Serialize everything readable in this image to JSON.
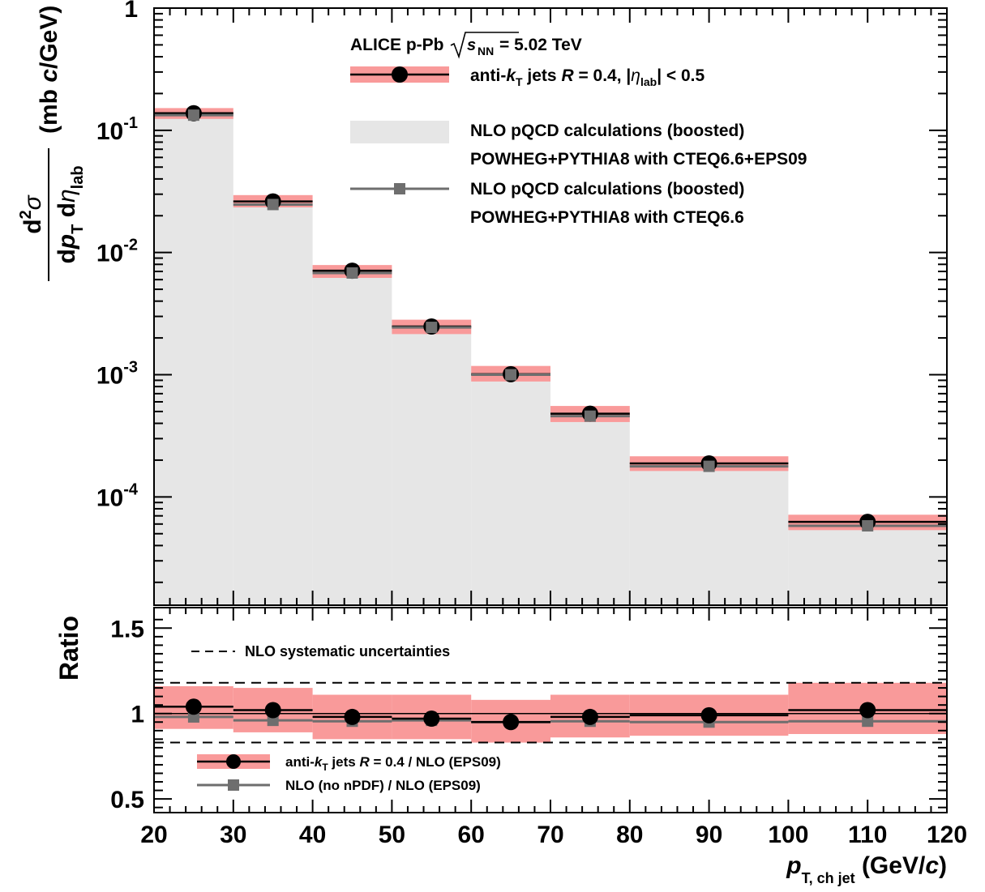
{
  "chart_data": [
    {
      "type": "bar",
      "panel": "spectrum",
      "scale": {
        "y": "log"
      },
      "xlim": [
        20,
        120
      ],
      "ylim": [
        1.3e-05,
        1
      ],
      "yticks": [
        {
          "value": 1,
          "mant": "1",
          "exp": ""
        },
        {
          "value": 0.1,
          "mant": "10",
          "exp": "-1"
        },
        {
          "value": 0.01,
          "mant": "10",
          "exp": "-2"
        },
        {
          "value": 0.001,
          "mant": "10",
          "exp": "-3"
        },
        {
          "value": 0.0001,
          "mant": "10",
          "exp": "-4"
        }
      ],
      "ylabel": {
        "num": "d²σ",
        "den": "dp_T dη_lab",
        "unit": "(mb c/GeV)"
      },
      "bins": [
        [
          20,
          30
        ],
        [
          30,
          40
        ],
        [
          40,
          50
        ],
        [
          50,
          60
        ],
        [
          60,
          70
        ],
        [
          70,
          80
        ],
        [
          80,
          100
        ],
        [
          100,
          120
        ]
      ],
      "centers": [
        25,
        35,
        45,
        55,
        65,
        75,
        90,
        110
      ],
      "series": [
        {
          "name": "anti-k_T jets R = 0.4, |η_lab| < 0.5",
          "kind": "data",
          "values": [
            0.138,
            0.0262,
            0.0071,
            0.00248,
            0.00101,
            0.00048,
            0.000188,
            6.25e-05
          ],
          "sys_low": [
            0.124,
            0.0234,
            0.0062,
            0.00215,
            0.00088,
            0.00041,
            0.000163,
            5.35e-05
          ],
          "sys_high": [
            0.152,
            0.0295,
            0.0079,
            0.00282,
            0.00118,
            0.000555,
            0.000215,
            7.15e-05
          ]
        },
        {
          "name": "NLO pQCD calculations (boosted) POWHEG+PYTHIA8 with CTEQ6.6+EPS09",
          "kind": "band",
          "values": [
            0.132,
            0.0252,
            0.0069,
            0.00246,
            0.00102,
            0.00047,
            0.000188,
            6.05e-05
          ]
        },
        {
          "name": "NLO pQCD calculations (boosted) POWHEG+PYTHIA8 with CTEQ6.6",
          "kind": "markers",
          "values": [
            0.133,
            0.0247,
            0.0068,
            0.00244,
            0.001,
            0.000458,
            0.000178,
            5.8e-05
          ]
        }
      ],
      "legend": {
        "header_collab": "ALICE p-Pb",
        "header_energy": "= 5.02 TeV",
        "header_sqrt_sub": "s",
        "header_sqrt_subscript": "NN",
        "entry1": "anti-k_T jets R = 0.4, |η_lab| < 0.5",
        "entry2_line1": "NLO pQCD calculations (boosted)",
        "entry2_line2": "POWHEG+PYTHIA8 with CTEQ6.6+EPS09",
        "entry3_line1": "NLO pQCD calculations (boosted)",
        "entry3_line2": "POWHEG+PYTHIA8 with CTEQ6.6",
        "placement": "top-right"
      },
      "colors": {
        "band": "#e6e6e6",
        "sys": "#f99a9a",
        "data": "#000000",
        "nlo": "#6e6e6e"
      }
    },
    {
      "type": "scatter",
      "panel": "ratio",
      "xlim": [
        20,
        120
      ],
      "ylim": [
        0.42,
        1.62
      ],
      "yticks": [
        0.5,
        1,
        1.5
      ],
      "ytick_labels": [
        "0.5",
        "1",
        "1.5"
      ],
      "xticks": [
        20,
        30,
        40,
        50,
        60,
        70,
        80,
        90,
        100,
        110,
        120
      ],
      "ylabel": "Ratio",
      "xlabel": {
        "main": "p",
        "sub": "T, ch jet",
        "unit": "(GeV/c)"
      },
      "nlo_sys": {
        "low": 0.83,
        "high": 1.18,
        "label": "NLO systematic uncertainties"
      },
      "bins": [
        [
          20,
          30
        ],
        [
          30,
          40
        ],
        [
          40,
          50
        ],
        [
          50,
          60
        ],
        [
          60,
          70
        ],
        [
          70,
          80
        ],
        [
          80,
          100
        ],
        [
          100,
          120
        ]
      ],
      "centers": [
        25,
        35,
        45,
        55,
        65,
        75,
        90,
        110
      ],
      "series": [
        {
          "name": "anti-k_T jets R = 0.4 / NLO (EPS09)",
          "values": [
            1.04,
            1.02,
            0.98,
            0.97,
            0.95,
            0.98,
            0.99,
            1.02
          ],
          "sys_low": [
            0.91,
            0.89,
            0.85,
            0.85,
            0.83,
            0.86,
            0.87,
            0.88
          ],
          "sys_high": [
            1.16,
            1.15,
            1.11,
            1.11,
            1.08,
            1.11,
            1.11,
            1.18
          ]
        },
        {
          "name": "NLO (no nPDF) / NLO (EPS09)",
          "values": [
            0.98,
            0.96,
            0.955,
            0.96,
            0.95,
            0.955,
            0.95,
            0.955
          ]
        }
      ],
      "legend": {
        "entry1": "anti-k_T jets R = 0.4 / NLO (EPS09)",
        "entry2": "NLO (no nPDF) / NLO (EPS09)",
        "placement": "bottom-left"
      }
    }
  ]
}
